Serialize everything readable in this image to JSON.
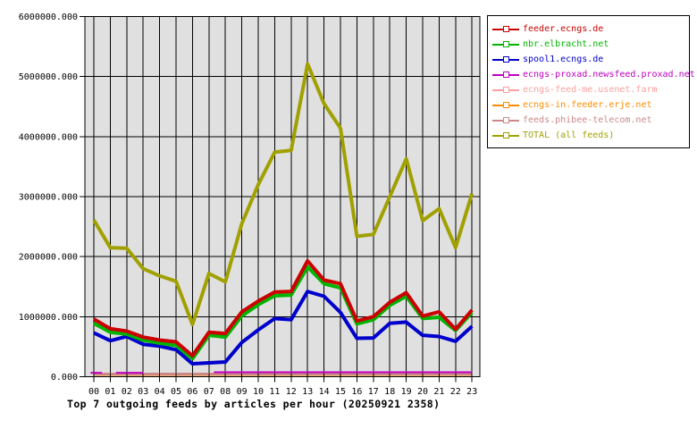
{
  "title": "Top 7 outgoing feeds by articles per hour (20250921 2358)",
  "chart_data": {
    "type": "line",
    "title": "Top 7 outgoing feeds by articles per hour (20250921 2358)",
    "xlabel": "",
    "ylabel": "",
    "x_tick_labels": [
      "00",
      "01",
      "02",
      "03",
      "04",
      "05",
      "06",
      "07",
      "08",
      "09",
      "10",
      "11",
      "12",
      "13",
      "14",
      "15",
      "16",
      "17",
      "18",
      "19",
      "20",
      "21",
      "22",
      "23"
    ],
    "y_tick_labels": [
      "0.000",
      "1000000.000",
      "2000000.000",
      "3000000.000",
      "4000000.000",
      "5000000.000",
      "6000000.000"
    ],
    "ylim": [
      0,
      6000000
    ],
    "grid": true,
    "plot_background": "#e0e0e0",
    "grid_color": "#000000",
    "legend_position": "top-right",
    "series": [
      {
        "name": "feeder.ecngs.de",
        "color": "#cc0000",
        "width": 4,
        "values": [
          960000,
          800000,
          760000,
          660000,
          610000,
          580000,
          350000,
          740000,
          720000,
          1080000,
          1260000,
          1410000,
          1420000,
          1930000,
          1610000,
          1550000,
          930000,
          1000000,
          1240000,
          1400000,
          1010000,
          1080000,
          790000,
          1110000
        ]
      },
      {
        "name": "nbr.elbracht.net",
        "color": "#00b400",
        "width": 4,
        "values": [
          890000,
          740000,
          710000,
          610000,
          560000,
          520000,
          300000,
          690000,
          660000,
          1010000,
          1200000,
          1350000,
          1360000,
          1830000,
          1550000,
          1480000,
          880000,
          950000,
          1190000,
          1340000,
          970000,
          990000,
          770000,
          1070000
        ]
      },
      {
        "name": "spool1.ecngs.de",
        "color": "#0000cc",
        "width": 4,
        "values": [
          730000,
          600000,
          670000,
          540000,
          510000,
          450000,
          215000,
          230000,
          245000,
          570000,
          780000,
          970000,
          950000,
          1420000,
          1340000,
          1070000,
          640000,
          645000,
          890000,
          910000,
          690000,
          670000,
          590000,
          840000
        ]
      },
      {
        "name": "ecngs-proxad.newsfeed.proxad.net",
        "color": "#c000c0",
        "width": 2,
        "segments": [
          {
            "x0": -0.2,
            "x1": 0.5,
            "value": 65000
          },
          {
            "x0": 1.35,
            "x1": 3.0,
            "value": 65000
          },
          {
            "x0": 7.3,
            "x1": 23.0,
            "value": 75000
          }
        ]
      },
      {
        "name": "ecngs-feed-me.usenet.farm",
        "color": "#ff9f9f",
        "width": 2,
        "values": [
          40000,
          40000,
          40000,
          40000,
          40000,
          40000,
          40000,
          40000,
          40000,
          40000,
          40000,
          40000,
          40000,
          40000,
          40000,
          40000,
          40000,
          40000,
          40000,
          40000,
          40000,
          40000,
          40000,
          40000
        ]
      },
      {
        "name": "ecngs-in.feeder.erje.net",
        "color": "#ff8c00",
        "width": 2,
        "values": [
          30000,
          30000,
          30000,
          30000,
          30000,
          30000,
          30000,
          30000,
          30000,
          30000,
          30000,
          30000,
          30000,
          30000,
          30000,
          30000,
          30000,
          30000,
          30000,
          30000,
          30000,
          30000,
          30000,
          30000
        ]
      },
      {
        "name": "feeds.phibee-telecom.net",
        "color": "#cc8888",
        "width": 3,
        "values": [
          45000,
          45000,
          45000,
          45000,
          45000,
          45000,
          45000,
          45000,
          45000,
          45000,
          45000,
          45000,
          45000,
          45000,
          45000,
          45000,
          45000,
          45000,
          45000,
          45000,
          45000,
          45000,
          45000,
          45000
        ]
      },
      {
        "name": "TOTAL (all feeds)",
        "color": "#a0a000",
        "width": 4,
        "values": [
          2610000,
          2150000,
          2140000,
          1800000,
          1680000,
          1590000,
          870000,
          1720000,
          1580000,
          2550000,
          3200000,
          3740000,
          3770000,
          5210000,
          4550000,
          4140000,
          2340000,
          2370000,
          3000000,
          3630000,
          2600000,
          2800000,
          2150000,
          3050000
        ]
      }
    ],
    "draw_order": [
      4,
      5,
      6,
      3,
      2,
      1,
      0,
      7
    ]
  },
  "layout_colors": {
    "page_background": "#ffffff",
    "axis_text": "#000000"
  }
}
